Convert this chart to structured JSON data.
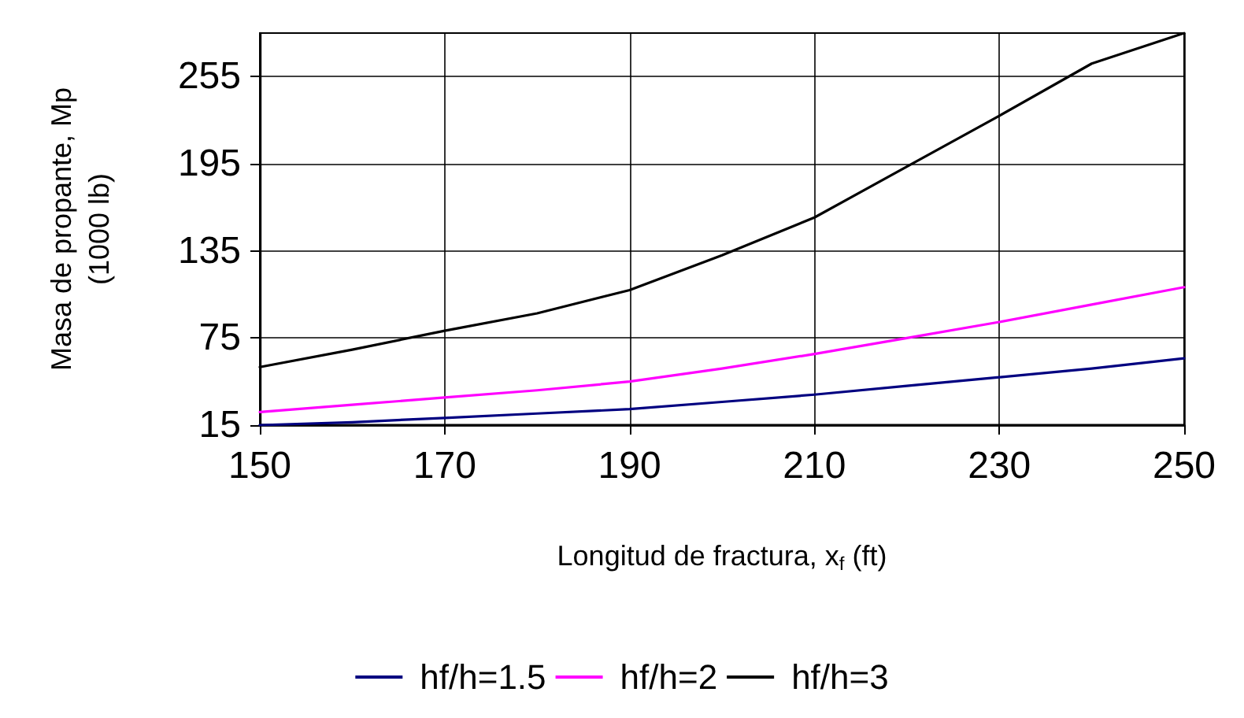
{
  "chart_data": {
    "type": "line",
    "xlabel": "Longitud de fractura, x$_{f}$ (ft)",
    "ylabel": "Masa de propante, Mp\n(1000 lb)",
    "x": [
      150,
      160,
      170,
      180,
      190,
      200,
      210,
      220,
      230,
      240,
      250
    ],
    "series": [
      {
        "name": "hf/h=1.5",
        "color": "#000080",
        "values": [
          15,
          17,
          20,
          23,
          26,
          31,
          36,
          42,
          48,
          54,
          61
        ]
      },
      {
        "name": "hf/h=2",
        "color": "#ff00ff",
        "values": [
          24,
          29,
          34,
          39,
          45,
          54,
          64,
          75,
          86,
          98,
          110
        ]
      },
      {
        "name": "hf/h=3",
        "color": "#000000",
        "values": [
          55,
          67,
          80,
          92,
          108,
          132,
          158,
          193,
          228,
          264,
          285
        ]
      }
    ],
    "xlim": [
      150,
      250
    ],
    "xticks": [
      150,
      170,
      190,
      210,
      230,
      250
    ],
    "ylim": [
      15,
      285
    ],
    "yticks": [
      15,
      75,
      135,
      195,
      255
    ],
    "grid": true,
    "legend": "bottom",
    "marker": "none",
    "line_style": "solid"
  }
}
